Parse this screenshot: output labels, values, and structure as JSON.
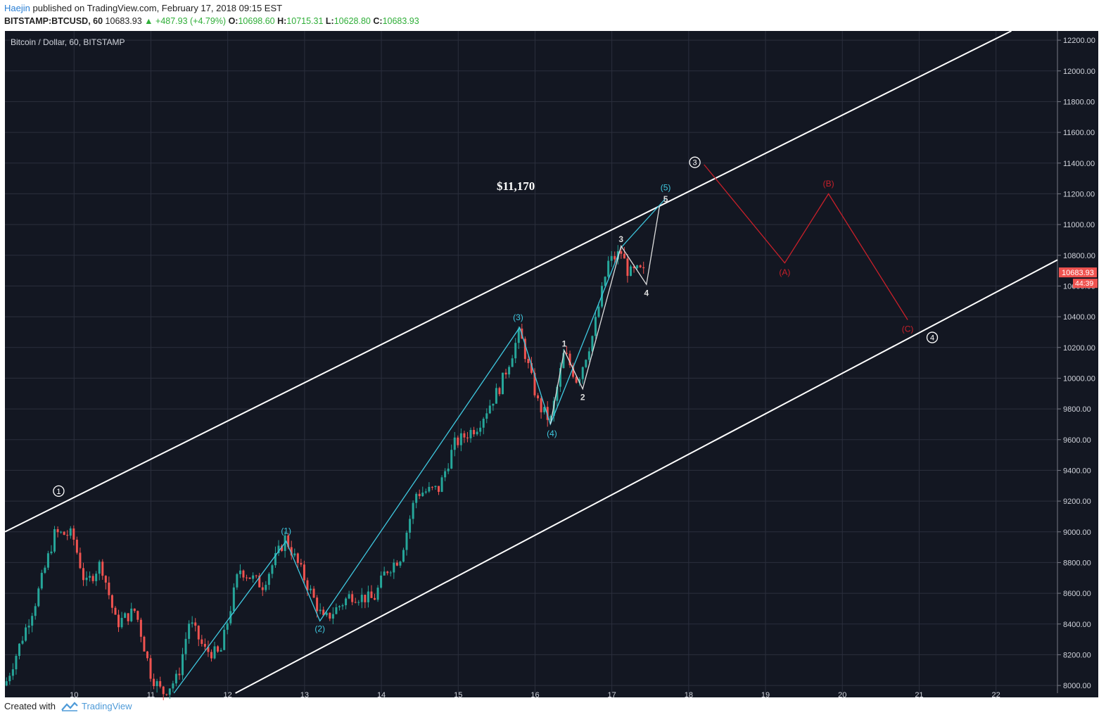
{
  "header": {
    "author": "Haejin",
    "published": "published on TradingView.com, February 17, 2018 09:15 EST",
    "symbol": "BITSTAMP:BTCUSD, 60",
    "last": "10683.93",
    "change": "▲ +487.93 (+4.79%)",
    "o_label": "O:",
    "o_value": "10698.60",
    "h_label": "H:",
    "h_value": "10715.31",
    "l_label": "L:",
    "l_value": "10628.80",
    "c_label": "C:",
    "c_value": "10683.93"
  },
  "footer": {
    "created_with": "Created with",
    "brand": "TradingView"
  },
  "colors": {
    "background": "#131722",
    "grid": "#2b2f3d",
    "up": "#26a69a",
    "down": "#ef5350",
    "channel": "#ffffff",
    "cyan_wave": "#3fc9e0",
    "red_wave": "#c8202a",
    "white_wave": "#dddddd",
    "price_tag": "#ef5350"
  },
  "chart_data": {
    "type": "candlestick",
    "title": "Bitcoin / Dollar, 60, BITSTAMP",
    "annotation": "$11,170",
    "x_ticks": [
      "10",
      "11",
      "12",
      "13",
      "14",
      "15",
      "16",
      "17",
      "18",
      "19",
      "20",
      "21",
      "22"
    ],
    "y_ticks": [
      "8000.00",
      "8200.00",
      "8400.00",
      "8600.00",
      "8800.00",
      "9000.00",
      "9200.00",
      "9400.00",
      "9600.00",
      "9800.00",
      "10000.00",
      "10200.00",
      "10400.00",
      "10600.00",
      "10800.00",
      "11000.00",
      "11200.00",
      "11400.00",
      "11600.00",
      "11800.00",
      "12000.00",
      "12200.00"
    ],
    "ylim": [
      7950,
      12260
    ],
    "xlim": [
      9.1,
      22.8
    ],
    "last_price": "10683.93",
    "countdown": "44:39",
    "price_path": [
      [
        9.1,
        8000
      ],
      [
        9.5,
        8550
      ],
      [
        9.75,
        8990
      ],
      [
        9.98,
        8980
      ],
      [
        10.15,
        8650
      ],
      [
        10.35,
        8800
      ],
      [
        10.55,
        8400
      ],
      [
        10.8,
        8490
      ],
      [
        11.0,
        8070
      ],
      [
        11.15,
        7950
      ],
      [
        11.35,
        8050
      ],
      [
        11.5,
        8420
      ],
      [
        11.7,
        8230
      ],
      [
        11.9,
        8200
      ],
      [
        12.15,
        8760
      ],
      [
        12.45,
        8650
      ],
      [
        12.75,
        8960
      ],
      [
        12.95,
        8750
      ],
      [
        13.25,
        8420
      ],
      [
        13.6,
        8590
      ],
      [
        13.9,
        8560
      ],
      [
        14.05,
        8740
      ],
      [
        14.25,
        8840
      ],
      [
        14.45,
        9250
      ],
      [
        14.75,
        9280
      ],
      [
        14.95,
        9570
      ],
      [
        15.25,
        9690
      ],
      [
        15.55,
        9950
      ],
      [
        15.8,
        10300
      ],
      [
        15.95,
        10000
      ],
      [
        16.05,
        9820
      ],
      [
        16.2,
        9720
      ],
      [
        16.38,
        10170
      ],
      [
        16.55,
        9980
      ],
      [
        16.75,
        10280
      ],
      [
        16.95,
        10750
      ],
      [
        17.12,
        10820
      ],
      [
        17.22,
        10680
      ],
      [
        17.35,
        10700
      ],
      [
        17.42,
        10683
      ]
    ],
    "channel": {
      "upper": [
        [
          9.1,
          9000
        ],
        [
          22.2,
          12260
        ]
      ],
      "lower": [
        [
          12.1,
          7950
        ],
        [
          22.8,
          10770
        ]
      ]
    },
    "waves_cyan": {
      "path": [
        [
          11.3,
          7950
        ],
        [
          12.76,
          8940
        ],
        [
          13.2,
          8420
        ],
        [
          15.8,
          10330
        ],
        [
          16.2,
          9700
        ],
        [
          17.12,
          10850
        ],
        [
          17.7,
          11170
        ]
      ],
      "labels": [
        {
          "text": "(1)",
          "x": 12.76,
          "y": 9005
        },
        {
          "text": "(2)",
          "x": 13.2,
          "y": 8370
        },
        {
          "text": "(3)",
          "x": 15.78,
          "y": 10395
        },
        {
          "text": "(4)",
          "x": 16.22,
          "y": 9640
        },
        {
          "text": "(5)",
          "x": 17.7,
          "y": 11240
        }
      ]
    },
    "waves_white": {
      "path": [
        [
          16.2,
          9700
        ],
        [
          16.38,
          10180
        ],
        [
          16.62,
          9930
        ],
        [
          17.12,
          10860
        ],
        [
          17.45,
          10610
        ],
        [
          17.62,
          11120
        ]
      ],
      "labels": [
        {
          "text": "1",
          "x": 16.38,
          "y": 10225
        },
        {
          "text": "2",
          "x": 16.62,
          "y": 9875
        },
        {
          "text": "3",
          "x": 17.12,
          "y": 10905
        },
        {
          "text": "4",
          "x": 17.45,
          "y": 10555
        },
        {
          "text": "5",
          "x": 17.7,
          "y": 11165
        }
      ]
    },
    "waves_red": {
      "path": [
        [
          18.2,
          11390
        ],
        [
          19.25,
          10750
        ],
        [
          19.82,
          11200
        ],
        [
          20.85,
          10380
        ]
      ],
      "labels": [
        {
          "text": "(A)",
          "x": 19.25,
          "y": 10690
        },
        {
          "text": "(B)",
          "x": 19.82,
          "y": 11265
        },
        {
          "text": "(C)",
          "x": 20.85,
          "y": 10320
        }
      ]
    },
    "circled_labels": [
      {
        "text": "1",
        "x": 9.8,
        "y": 9265
      },
      {
        "text": "3",
        "x": 18.08,
        "y": 11405
      },
      {
        "text": "4",
        "x": 21.17,
        "y": 10265
      }
    ]
  }
}
